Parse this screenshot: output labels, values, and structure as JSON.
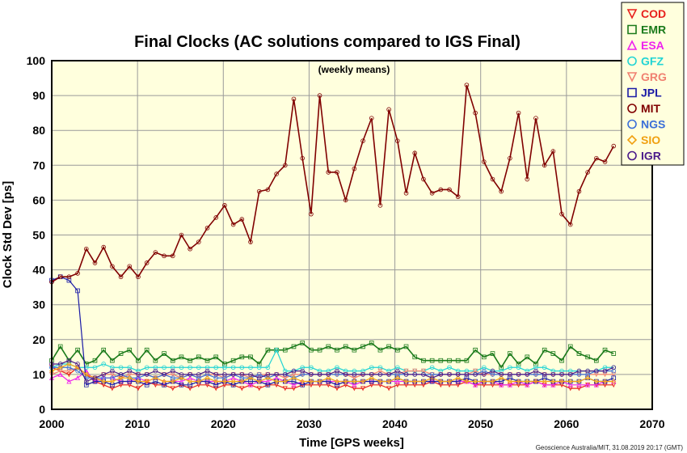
{
  "chart_data": {
    "type": "line",
    "title": "Final Clocks (AC solutions compared to IGS Final)",
    "annotation": "(weekly means)",
    "xlabel": "Time [GPS weeks]",
    "ylabel": "Clock Std Dev [ps]",
    "credit": "Geoscience Australia/MIT, 31.08.2019 20:17 (GMT)",
    "xlim": [
      2000,
      2070
    ],
    "ylim": [
      0,
      100
    ],
    "xticks": [
      2000,
      2010,
      2020,
      2030,
      2040,
      2050,
      2060,
      2070
    ],
    "yticks": [
      0,
      10,
      20,
      30,
      40,
      50,
      60,
      70,
      80,
      90,
      100
    ],
    "grid": true,
    "background": "#ffffdd",
    "legend_position": "top-right",
    "series": [
      {
        "name": "COD",
        "color": "#e8201c",
        "marker": "triangle-down",
        "x_start": 2000,
        "x_end": 2065.5,
        "values": [
          12,
          11,
          10,
          12,
          10,
          8,
          7,
          6,
          7,
          7,
          6,
          8,
          7,
          7,
          6,
          7,
          6,
          7,
          7,
          6,
          7,
          7,
          6,
          7,
          6,
          7,
          7,
          6,
          6,
          7,
          7,
          7,
          7,
          6,
          7,
          6,
          6,
          7,
          7,
          6,
          7,
          7,
          7,
          7,
          8,
          7,
          7,
          7,
          8,
          7,
          7,
          7,
          7,
          7,
          7,
          7,
          8,
          7,
          7,
          7,
          6,
          6,
          7,
          7,
          7,
          7
        ]
      },
      {
        "name": "EMR",
        "color": "#1a7a1a",
        "marker": "square",
        "x_start": 2000,
        "x_end": 2065.5,
        "values": [
          14,
          18,
          14,
          17,
          13,
          14,
          17,
          14,
          16,
          17,
          14,
          17,
          14,
          16,
          14,
          15,
          14,
          15,
          14,
          15,
          13,
          14,
          15,
          15,
          13,
          17,
          17,
          17,
          18,
          19,
          17,
          17,
          18,
          17,
          18,
          17,
          18,
          19,
          17,
          18,
          17,
          18,
          15,
          14,
          14,
          14,
          14,
          14,
          14,
          17,
          15,
          16,
          12,
          16,
          13,
          15,
          13,
          17,
          16,
          14,
          18,
          16,
          15,
          14,
          17,
          16
        ]
      },
      {
        "name": "ESA",
        "color": "#ee22ee",
        "marker": "triangle-up",
        "x_start": 2000,
        "x_end": 2065.5,
        "values": [
          9,
          10,
          8,
          9,
          11,
          8,
          9,
          9,
          8,
          8,
          9,
          8,
          9,
          8,
          8,
          8,
          9,
          8,
          8,
          8,
          8,
          9,
          8,
          7,
          8,
          8,
          9,
          8,
          7,
          8,
          8,
          8,
          8,
          8,
          8,
          7,
          8,
          8,
          8,
          8,
          8,
          8,
          8,
          8,
          8,
          8,
          8,
          8,
          8,
          7,
          8,
          8,
          7,
          7,
          8,
          7,
          8,
          7,
          7,
          8,
          7,
          7,
          7,
          7,
          8,
          8
        ]
      },
      {
        "name": "GFZ",
        "color": "#22d4d4",
        "marker": "circle",
        "x_start": 2000,
        "x_end": 2065.5,
        "values": [
          12,
          13,
          13,
          12,
          12,
          12,
          13,
          12,
          12,
          12,
          11,
          12,
          12,
          12,
          12,
          12,
          12,
          12,
          12,
          12,
          12,
          12,
          12,
          12,
          12,
          12,
          17,
          11,
          11,
          12,
          12,
          11,
          11,
          12,
          11,
          11,
          11,
          12,
          12,
          11,
          12,
          11,
          11,
          11,
          12,
          11,
          12,
          11,
          11,
          11,
          12,
          11,
          11,
          12,
          12,
          11,
          12,
          12,
          11,
          11,
          11,
          11,
          11,
          11,
          12,
          12
        ]
      },
      {
        "name": "GRG",
        "color": "#f08070",
        "marker": "triangle-down",
        "x_start": 2000,
        "x_end": 2065.5,
        "values": [
          10,
          11,
          11,
          12,
          10,
          9,
          10,
          10,
          9,
          10,
          10,
          10,
          9,
          10,
          10,
          9,
          10,
          9,
          10,
          10,
          9,
          10,
          10,
          9,
          10,
          10,
          10,
          9,
          10,
          10,
          10,
          10,
          10,
          10,
          10,
          9,
          10,
          10,
          11,
          10,
          10,
          11,
          11,
          11,
          10,
          10,
          10,
          10,
          10,
          11,
          10,
          10,
          10,
          10,
          10,
          10,
          10,
          10,
          10,
          10,
          10,
          10,
          10,
          10,
          10,
          10
        ]
      },
      {
        "name": "JPL",
        "color": "#1a1aa6",
        "marker": "square",
        "x_start": 2000,
        "x_end": 2065.5,
        "values": [
          37,
          38,
          37,
          34,
          7,
          8,
          8,
          7,
          8,
          8,
          8,
          7,
          8,
          7,
          8,
          7,
          7,
          8,
          8,
          7,
          8,
          7,
          8,
          8,
          8,
          7,
          8,
          8,
          8,
          7,
          8,
          8,
          8,
          7,
          8,
          8,
          8,
          8,
          8,
          8,
          9,
          8,
          8,
          8,
          8,
          8,
          8,
          8,
          9,
          8,
          8,
          8,
          8,
          9,
          8,
          8,
          8,
          9,
          8,
          8,
          8,
          8,
          9,
          8,
          8,
          9
        ]
      },
      {
        "name": "MIT",
        "color": "#800000",
        "marker": "circle",
        "x_start": 2000,
        "x_end": 2065.5,
        "values": [
          36.5,
          38,
          38,
          39,
          46,
          42,
          46.5,
          41,
          38,
          41,
          38,
          42,
          45,
          44,
          44,
          50,
          46,
          48,
          52,
          55,
          58.5,
          53,
          54.5,
          48,
          62.5,
          63,
          67.5,
          70,
          89,
          72,
          56,
          90,
          68,
          68,
          60,
          69,
          77,
          83.5,
          58.5,
          86,
          77,
          62,
          73.5,
          66,
          62,
          63,
          63,
          61,
          93,
          85,
          71,
          66,
          62.5,
          72,
          85,
          66,
          83.5,
          70,
          74,
          56,
          53,
          62.5,
          68,
          72,
          71,
          75.5
        ]
      },
      {
        "name": "NGS",
        "color": "#3a6ed8",
        "marker": "circle",
        "x_start": 2000,
        "x_end": 2065.5,
        "values": [
          12,
          12,
          12,
          11,
          9,
          9,
          9,
          9,
          10,
          9,
          9,
          10,
          9,
          10,
          9,
          9,
          10,
          9,
          10,
          9,
          9,
          10,
          9,
          9,
          10,
          9,
          10,
          10,
          9,
          10,
          10,
          10,
          10,
          10,
          10,
          10,
          10,
          10,
          10,
          10,
          10,
          10,
          10,
          10,
          10,
          10,
          10,
          10,
          10,
          10,
          11,
          10,
          10,
          10,
          10,
          10,
          10,
          10,
          10,
          10,
          10,
          10,
          10,
          11,
          11,
          11
        ]
      },
      {
        "name": "SIO",
        "color": "#f0a010",
        "marker": "diamond",
        "x_start": 2000,
        "x_end": 2065.5,
        "values": [
          11,
          12,
          13,
          12,
          10,
          9,
          8,
          8,
          9,
          9,
          8,
          8,
          9,
          8,
          8,
          9,
          8,
          8,
          9,
          8,
          8,
          8,
          8,
          9,
          8,
          9,
          8,
          8,
          9,
          8,
          8,
          8,
          9,
          8,
          8,
          8,
          8,
          9,
          8,
          8,
          9,
          8,
          8,
          8,
          9,
          8,
          8,
          9,
          8,
          8,
          8,
          8,
          9,
          8,
          8,
          8,
          8,
          8,
          8,
          8,
          8,
          8,
          9,
          8,
          8,
          8
        ]
      },
      {
        "name": "IGR",
        "color": "#4a1a8a",
        "marker": "circle",
        "x_start": 2000,
        "x_end": 2065.5,
        "values": [
          13,
          13,
          14,
          13,
          8,
          9,
          10,
          11,
          10,
          11,
          10,
          10,
          11,
          10,
          11,
          10,
          10,
          10,
          11,
          10,
          10,
          10,
          10,
          10,
          9,
          10,
          10,
          10,
          11,
          11,
          10,
          10,
          10,
          11,
          10,
          10,
          10,
          10,
          10,
          10,
          11,
          10,
          10,
          10,
          9,
          10,
          10,
          10,
          10,
          10,
          10,
          11,
          10,
          10,
          10,
          10,
          11,
          10,
          10,
          10,
          10,
          11,
          11,
          11,
          11,
          12
        ]
      }
    ]
  }
}
